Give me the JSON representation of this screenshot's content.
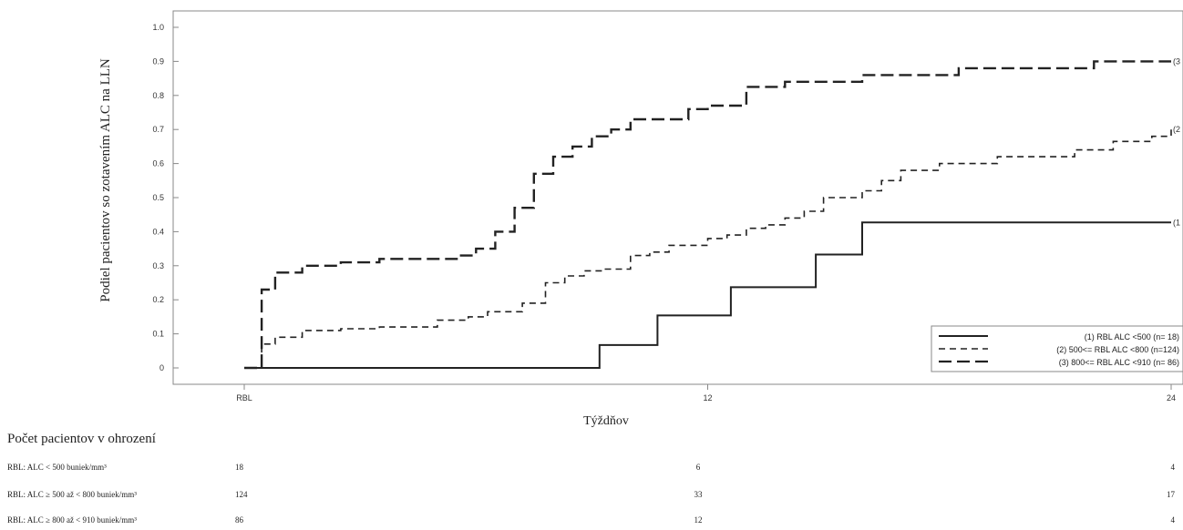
{
  "chart_data": {
    "type": "line",
    "subtype": "step",
    "ylabel": "Podiel pacientov so zotavením ALC na LLN",
    "xlabel": "Týždňov",
    "x_ticks": [
      "RBL",
      "12",
      "24"
    ],
    "y_ticks": [
      "0",
      "0.1",
      "0.2",
      "0.3",
      "0.4",
      "0.5",
      "0.6",
      "0.7",
      "0.8",
      "0.9",
      "1.0"
    ],
    "xlim": [
      0,
      24
    ],
    "ylim": [
      0,
      1.0
    ],
    "grid": false,
    "legend_position": "bottom-right",
    "series": [
      {
        "name": "(1) RBL ALC <500 (n= 18)",
        "end_label": "(1",
        "style": "solid",
        "x": [
          0,
          5.5,
          9.2,
          10.7,
          12.6,
          14.8,
          16.0,
          16.9,
          24
        ],
        "y": [
          0,
          0,
          0.067,
          0.154,
          0.237,
          0.333,
          0.427,
          0.427,
          0.427
        ]
      },
      {
        "name": "(2) 500<= RBL ALC <800 (n=124)",
        "end_label": "(2",
        "style": "dashed",
        "x": [
          0,
          0.3,
          0.45,
          0.8,
          1.5,
          2.5,
          3.5,
          5.0,
          5.8,
          6.3,
          7.2,
          7.8,
          8.3,
          8.8,
          9.3,
          10.0,
          10.5,
          11.0,
          11.5,
          12.0,
          12.5,
          13.0,
          13.5,
          14.0,
          14.5,
          15.0,
          16.0,
          16.5,
          17.0,
          18.0,
          19.5,
          20.5,
          21.5,
          22.5,
          23.5,
          24
        ],
        "y": [
          0,
          0,
          0.07,
          0.09,
          0.11,
          0.115,
          0.12,
          0.14,
          0.15,
          0.165,
          0.19,
          0.25,
          0.27,
          0.285,
          0.29,
          0.33,
          0.34,
          0.36,
          0.36,
          0.38,
          0.39,
          0.41,
          0.42,
          0.44,
          0.46,
          0.5,
          0.52,
          0.55,
          0.58,
          0.6,
          0.62,
          0.62,
          0.64,
          0.665,
          0.68,
          0.7
        ]
      },
      {
        "name": "(3) 800<= RBL ALC <910 (n= 86)",
        "end_label": "(3",
        "style": "long-dashed",
        "x": [
          0,
          0.3,
          0.45,
          0.8,
          1.5,
          2.5,
          3.5,
          5.5,
          6.0,
          6.5,
          7.0,
          7.5,
          8.0,
          8.5,
          9.0,
          9.5,
          10.0,
          10.5,
          11.5,
          12.0,
          13.0,
          14.0,
          16.0,
          18.5,
          20.0,
          22.0,
          24
        ],
        "y": [
          0,
          0,
          0.23,
          0.28,
          0.3,
          0.31,
          0.32,
          0.33,
          0.35,
          0.4,
          0.47,
          0.57,
          0.62,
          0.65,
          0.68,
          0.7,
          0.73,
          0.73,
          0.76,
          0.77,
          0.825,
          0.84,
          0.86,
          0.88,
          0.88,
          0.9,
          0.9
        ]
      }
    ]
  },
  "risk_table": {
    "title": "Počet pacientov v ohrození",
    "rows": [
      {
        "label": "RBL: ALC < 500 buniek/mm³",
        "values": [
          "18",
          "6",
          "4"
        ]
      },
      {
        "label": "RBL: ALC ≥ 500 až < 800 buniek/mm³",
        "values": [
          "124",
          "33",
          "17"
        ]
      },
      {
        "label": "RBL: ALC ≥ 800 až < 910 buniek/mm³",
        "values": [
          "86",
          "12",
          "4"
        ]
      }
    ]
  }
}
